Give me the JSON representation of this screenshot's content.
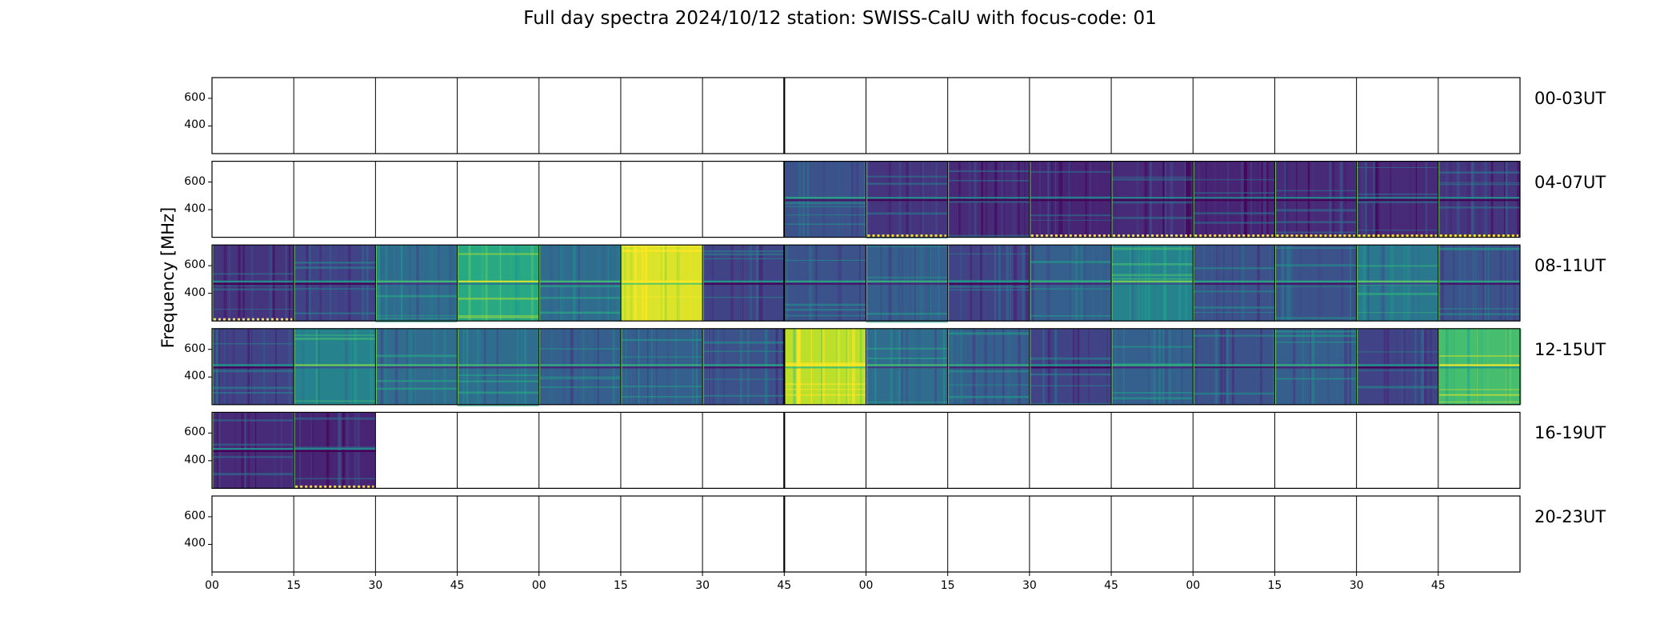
{
  "chart_data": {
    "type": "heatmap",
    "title": "Full day spectra 2024/10/12 station: SWISS-CalU with focus-code: 01",
    "xlabel": "",
    "ylabel": "Frequency [MHz]",
    "x_tick_labels": [
      "00",
      "15",
      "30",
      "45",
      "00",
      "15",
      "30",
      "45",
      "00",
      "15",
      "30",
      "45",
      "00",
      "15",
      "30",
      "45"
    ],
    "y_ticks": [
      400,
      600
    ],
    "ylim": [
      200,
      750
    ],
    "colormap": "viridis",
    "rows": [
      {
        "label": "00-03UT",
        "active": [
          0,
          0,
          0,
          0,
          0,
          0,
          0,
          0,
          0,
          0,
          0,
          0,
          0,
          0,
          0,
          0
        ],
        "intensity": [
          0,
          0,
          0,
          0,
          0,
          0,
          0,
          0,
          0,
          0,
          0,
          0,
          0,
          0,
          0,
          0
        ],
        "flagged": []
      },
      {
        "label": "04-07UT",
        "active": [
          0,
          0,
          0,
          0,
          0,
          0,
          0,
          1,
          1,
          1,
          1,
          1,
          1,
          1,
          1,
          1
        ],
        "intensity": [
          0,
          0,
          0,
          0,
          0,
          0,
          0,
          0.25,
          0.15,
          0.12,
          0.1,
          0.12,
          0.1,
          0.12,
          0.12,
          0.15
        ],
        "flagged": [
          8,
          10,
          11,
          12,
          13,
          14,
          15
        ]
      },
      {
        "label": "08-11UT",
        "active": [
          1,
          1,
          1,
          1,
          1,
          1,
          1,
          1,
          1,
          1,
          1,
          1,
          1,
          1,
          1,
          1
        ],
        "intensity": [
          0.15,
          0.2,
          0.35,
          0.6,
          0.35,
          0.95,
          0.2,
          0.25,
          0.3,
          0.2,
          0.3,
          0.45,
          0.25,
          0.25,
          0.4,
          0.25
        ],
        "flagged": [
          0
        ]
      },
      {
        "label": "12-15UT",
        "active": [
          1,
          1,
          1,
          1,
          1,
          1,
          1,
          1,
          1,
          1,
          1,
          1,
          1,
          1,
          1,
          1
        ],
        "intensity": [
          0.2,
          0.45,
          0.35,
          0.35,
          0.3,
          0.3,
          0.25,
          0.9,
          0.35,
          0.3,
          0.2,
          0.3,
          0.25,
          0.3,
          0.2,
          0.7
        ],
        "flagged": []
      },
      {
        "label": "16-19UT",
        "active": [
          1,
          1,
          0,
          0,
          0,
          0,
          0,
          0,
          0,
          0,
          0,
          0,
          0,
          0,
          0,
          0
        ],
        "intensity": [
          0.12,
          0.1,
          0,
          0,
          0,
          0,
          0,
          0,
          0,
          0,
          0,
          0,
          0,
          0,
          0,
          0
        ],
        "flagged": [
          1
        ]
      },
      {
        "label": "20-23UT",
        "active": [
          0,
          0,
          0,
          0,
          0,
          0,
          0,
          0,
          0,
          0,
          0,
          0,
          0,
          0,
          0,
          0
        ],
        "intensity": [
          0,
          0,
          0,
          0,
          0,
          0,
          0,
          0,
          0,
          0,
          0,
          0,
          0,
          0,
          0,
          0
        ],
        "flagged": []
      }
    ]
  }
}
